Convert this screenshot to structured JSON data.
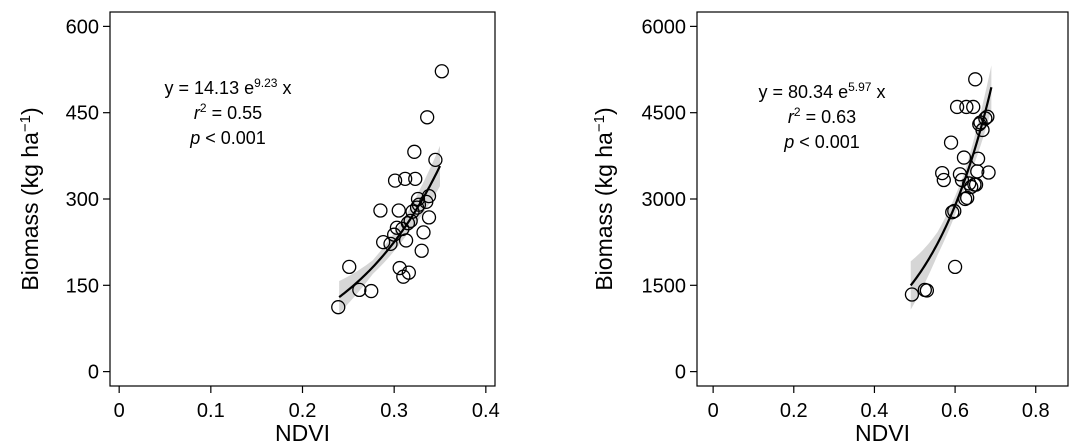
{
  "chart_data": [
    {
      "type": "scatter",
      "xlabel": "NDVI",
      "ylabel": "Biomass (kg ha",
      "ylabel_sup": "−1",
      "ylabel_close": ")",
      "xlim": [
        -0.01,
        0.41
      ],
      "ylim": [
        -25,
        625
      ],
      "xticks": [
        0,
        0.1,
        0.2,
        0.3,
        0.4
      ],
      "xtick_labels": [
        "0",
        "0.1",
        "0.2",
        "0.3",
        "0.4"
      ],
      "yticks": [
        0,
        150,
        300,
        450,
        600
      ],
      "ytick_labels": [
        "0",
        "150",
        "300",
        "450",
        "600"
      ],
      "grid": false,
      "annotation": {
        "eq_prefix": "y = 14.13 e",
        "eq_sup": "9.23",
        "eq_suffix": " x",
        "r2_var": "r",
        "r2_sup": "2",
        "r2_rest": " = 0.55",
        "p_var": "p",
        "p_rest": " < 0.001"
      },
      "fit": {
        "a": 14.13,
        "b": 9.23,
        "x_range": [
          0.24,
          0.35
        ],
        "ci_halfwidth": [
          28,
          12,
          18,
          35
        ]
      },
      "points": [
        [
          0.239,
          112
        ],
        [
          0.251,
          182
        ],
        [
          0.262,
          142
        ],
        [
          0.275,
          140
        ],
        [
          0.285,
          280
        ],
        [
          0.288,
          225
        ],
        [
          0.296,
          222
        ],
        [
          0.3,
          238
        ],
        [
          0.301,
          332
        ],
        [
          0.303,
          250
        ],
        [
          0.305,
          280
        ],
        [
          0.306,
          180
        ],
        [
          0.309,
          248
        ],
        [
          0.31,
          165
        ],
        [
          0.312,
          335
        ],
        [
          0.313,
          228
        ],
        [
          0.315,
          258
        ],
        [
          0.316,
          172
        ],
        [
          0.318,
          262
        ],
        [
          0.32,
          278
        ],
        [
          0.322,
          382
        ],
        [
          0.323,
          335
        ],
        [
          0.325,
          285
        ],
        [
          0.326,
          300
        ],
        [
          0.327,
          290
        ],
        [
          0.33,
          210
        ],
        [
          0.332,
          242
        ],
        [
          0.335,
          295
        ],
        [
          0.336,
          442
        ],
        [
          0.338,
          305
        ],
        [
          0.338,
          268
        ],
        [
          0.345,
          368
        ],
        [
          0.352,
          522
        ]
      ]
    },
    {
      "type": "scatter",
      "xlabel": "NDVI",
      "ylabel": "Biomass (kg ha",
      "ylabel_sup": "−1",
      "ylabel_close": ")",
      "xlim": [
        -0.04,
        0.88
      ],
      "ylim": [
        -250,
        6250
      ],
      "xticks": [
        0,
        0.2,
        0.4,
        0.6,
        0.8
      ],
      "xtick_labels": [
        "0",
        "0.2",
        "0.4",
        "0.6",
        "0.8"
      ],
      "yticks": [
        0,
        1500,
        3000,
        4500,
        6000
      ],
      "ytick_labels": [
        "0",
        "1500",
        "3000",
        "4500",
        "6000"
      ],
      "grid": false,
      "annotation": {
        "eq_prefix": "y = 80.34 e",
        "eq_sup": "5.97",
        "eq_suffix": " x",
        "r2_var": "r",
        "r2_sup": "2",
        "r2_rest": " = 0.63",
        "p_var": "p",
        "p_rest": " < 0.001"
      },
      "fit": {
        "a": 80.34,
        "b": 5.97,
        "x_range": [
          0.49,
          0.69
        ],
        "ci_halfwidth": [
          420,
          200,
          140,
          380
        ]
      },
      "points": [
        [
          0.493,
          1340
        ],
        [
          0.525,
          1420
        ],
        [
          0.53,
          1410
        ],
        [
          0.568,
          3450
        ],
        [
          0.572,
          3330
        ],
        [
          0.59,
          3980
        ],
        [
          0.593,
          2770
        ],
        [
          0.598,
          2790
        ],
        [
          0.6,
          1820
        ],
        [
          0.605,
          4600
        ],
        [
          0.612,
          3430
        ],
        [
          0.617,
          3330
        ],
        [
          0.622,
          3720
        ],
        [
          0.625,
          3000
        ],
        [
          0.628,
          4600
        ],
        [
          0.63,
          3020
        ],
        [
          0.635,
          3270
        ],
        [
          0.64,
          3210
        ],
        [
          0.645,
          4600
        ],
        [
          0.648,
          3250
        ],
        [
          0.65,
          5080
        ],
        [
          0.652,
          3250
        ],
        [
          0.655,
          3480
        ],
        [
          0.657,
          3700
        ],
        [
          0.66,
          4300
        ],
        [
          0.663,
          4330
        ],
        [
          0.668,
          4200
        ],
        [
          0.675,
          4400
        ],
        [
          0.68,
          4430
        ],
        [
          0.683,
          3460
        ]
      ]
    }
  ]
}
